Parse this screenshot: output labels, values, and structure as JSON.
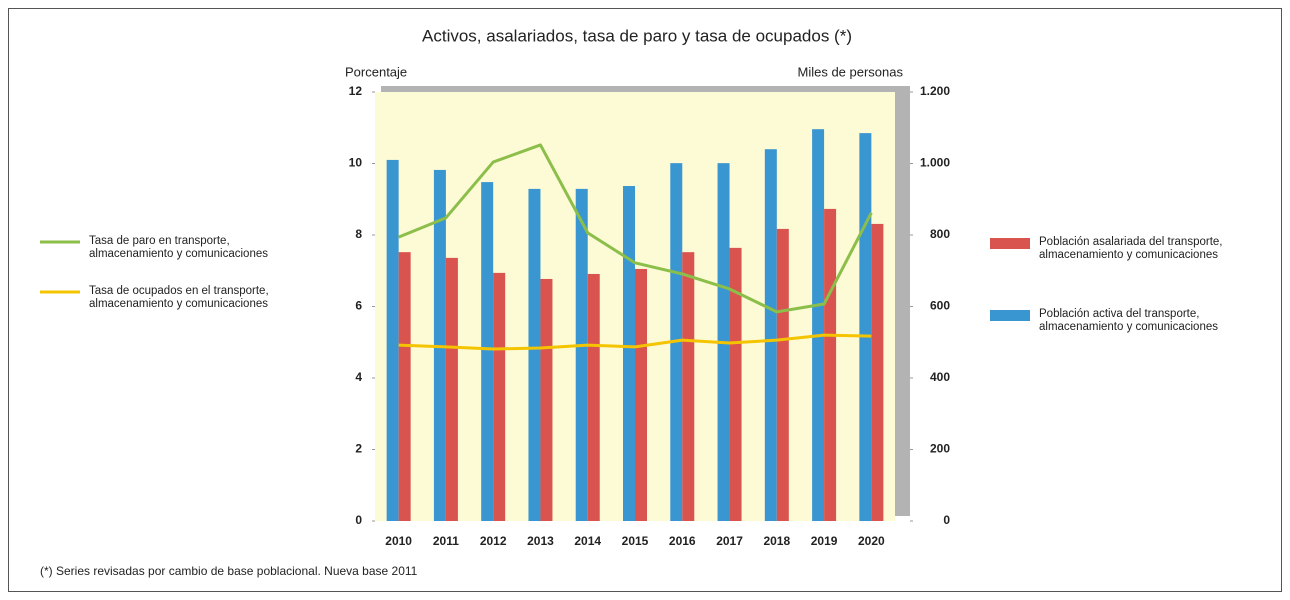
{
  "chart_data": {
    "type": "bar_line",
    "title": "Activos, asalariados, tasa de paro y tasa de ocupados (*)",
    "y_label": "Porcentaje",
    "y2_label": "Miles de personas",
    "note": "(*) Series revisadas por cambio de base poblacional. Nueva base 2011",
    "categories": [
      "2010",
      "2011",
      "2012",
      "2013",
      "2014",
      "2015",
      "2016",
      "2017",
      "2018",
      "2019",
      "2020"
    ],
    "ylim": [
      0,
      12
    ],
    "yticks": [
      0,
      2,
      4,
      6,
      8,
      10,
      12
    ],
    "y2lim": [
      0,
      1200
    ],
    "y2ticks": [
      0,
      200,
      400,
      600,
      800,
      {
        "value": 1000,
        "label": "1.000"
      },
      {
        "value": 1200,
        "label": "1.200"
      }
    ],
    "series": [
      {
        "name": "Tasa de paro en transporte, almacenamiento y comunicaciones",
        "type": "line",
        "color": "#8cbe4a",
        "values": [
          7.94,
          8.48,
          10.04,
          10.52,
          8.06,
          7.22,
          6.91,
          6.49,
          5.85,
          6.07,
          8.62
        ]
      },
      {
        "name": "Tasa de ocupados en el transporte, almacenamiento y comunicaciones",
        "type": "line",
        "color": "#f5c400",
        "values": [
          4.92,
          4.87,
          4.81,
          4.84,
          4.92,
          4.87,
          5.06,
          4.98,
          5.06,
          5.2,
          5.17
        ]
      },
      {
        "name": "Población asalariada del transporte, almacenamiento y comunicaciones",
        "type": "bar",
        "axis": "y2",
        "color": "#d9534f",
        "values": [
          752,
          736,
          694,
          677,
          691,
          705,
          752,
          764,
          817,
          873,
          831
        ]
      },
      {
        "name": "Población activa del transporte, almacenamiento y comunicaciones",
        "type": "bar",
        "axis": "y2",
        "color": "#3a96d0",
        "values": [
          1010,
          982,
          948,
          929,
          929,
          937,
          1001,
          1001,
          1040,
          1096,
          1085
        ]
      }
    ]
  }
}
